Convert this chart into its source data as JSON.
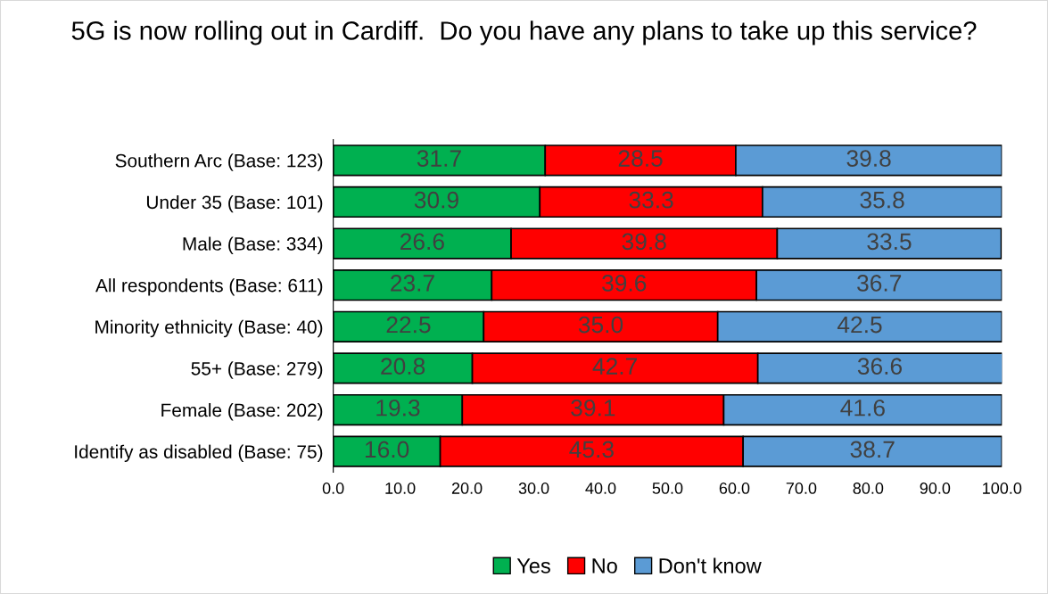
{
  "chart_data": {
    "type": "bar",
    "orientation": "horizontal",
    "stacked": true,
    "title": "5G is now rolling out in Cardiff.  Do you have any plans to take up this service?",
    "categories": [
      "Southern Arc (Base: 123)",
      "Under 35 (Base: 101)",
      "Male (Base: 334)",
      "All respondents (Base: 611)",
      "Minority ethnicity (Base: 40)",
      "55+ (Base: 279)",
      "Female (Base: 202)",
      "Identify as disabled (Base: 75)"
    ],
    "series": [
      {
        "name": "Yes",
        "color": "#00b050",
        "values": [
          31.7,
          30.9,
          26.6,
          23.7,
          22.5,
          20.8,
          19.3,
          16.0
        ],
        "value_labels": [
          "31.7",
          "30.9",
          "26.6",
          "23.7",
          "22.5",
          "20.8",
          "19.3",
          "16.0"
        ]
      },
      {
        "name": "No",
        "color": "#ff0000",
        "values": [
          28.5,
          33.3,
          39.8,
          39.6,
          35.0,
          42.7,
          39.1,
          45.3
        ],
        "value_labels": [
          "28.5",
          "33.3",
          "39.8",
          "39.6",
          "35.0",
          "42.7",
          "39.1",
          "45.3"
        ]
      },
      {
        "name": "Don't know",
        "color": "#5b9bd5",
        "values": [
          39.8,
          35.8,
          33.5,
          36.7,
          42.5,
          36.6,
          41.6,
          38.7
        ],
        "value_labels": [
          "39.8",
          "35.8",
          "33.5",
          "36.7",
          "42.5",
          "36.6",
          "41.6",
          "38.7"
        ]
      }
    ],
    "xlim": [
      0,
      100
    ],
    "xticks": [
      {
        "value": 0,
        "label": "0.0"
      },
      {
        "value": 10,
        "label": "10.0"
      },
      {
        "value": 20,
        "label": "20.0"
      },
      {
        "value": 30,
        "label": "30.0"
      },
      {
        "value": 40,
        "label": "40.0"
      },
      {
        "value": 50,
        "label": "50.0"
      },
      {
        "value": 60,
        "label": "60.0"
      },
      {
        "value": 70,
        "label": "70.0"
      },
      {
        "value": 80,
        "label": "80.0"
      },
      {
        "value": 90,
        "label": "90.0"
      },
      {
        "value": 100,
        "label": "100.0"
      }
    ],
    "legend": "bottom",
    "grid": false
  }
}
